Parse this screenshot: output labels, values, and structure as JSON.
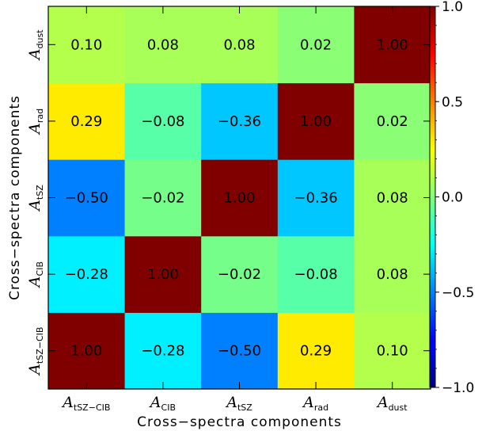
{
  "chart_data": {
    "type": "heatmap",
    "xlabel": "Cross−spectra components",
    "ylabel": "Cross−spectra components",
    "categories": [
      {
        "main": "A",
        "sub": "tSZ−CIB"
      },
      {
        "main": "A",
        "sub": "CIB"
      },
      {
        "main": "A",
        "sub": "tSZ"
      },
      {
        "main": "A",
        "sub": "rad"
      },
      {
        "main": "A",
        "sub": "dust"
      }
    ],
    "matrix": [
      [
        1.0,
        -0.28,
        -0.5,
        0.29,
        0.1
      ],
      [
        -0.28,
        1.0,
        -0.02,
        -0.08,
        0.08
      ],
      [
        -0.5,
        -0.02,
        1.0,
        -0.36,
        0.08
      ],
      [
        0.29,
        -0.08,
        -0.36,
        1.0,
        0.02
      ],
      [
        0.1,
        0.08,
        0.08,
        0.02,
        1.0
      ]
    ],
    "cell_labels": [
      [
        "1.00",
        "−0.28",
        "−0.50",
        "0.29",
        "0.10"
      ],
      [
        "−0.28",
        "1.00",
        "−0.02",
        "−0.08",
        "0.08"
      ],
      [
        "−0.50",
        "−0.02",
        "1.00",
        "−0.36",
        "0.08"
      ],
      [
        "0.29",
        "−0.08",
        "−0.36",
        "1.00",
        "0.02"
      ],
      [
        "0.10",
        "0.08",
        "0.08",
        "0.02",
        "1.00"
      ]
    ],
    "colorscale": "jet",
    "zlim": [
      -1.0,
      1.0
    ],
    "colorbar_ticks": [
      {
        "value": 1.0,
        "label": "1.0"
      },
      {
        "value": 0.5,
        "label": "0.5"
      },
      {
        "value": 0.0,
        "label": "0.0"
      },
      {
        "value": -0.5,
        "label": "−0.5"
      },
      {
        "value": -1.0,
        "label": "−1.0"
      }
    ],
    "colorbar_position": "right",
    "grid": false
  }
}
